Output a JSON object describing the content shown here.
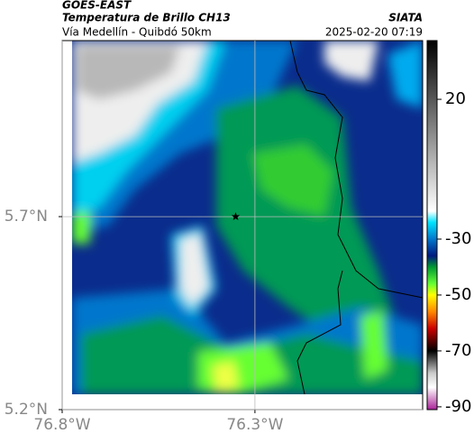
{
  "header": {
    "title": "GOES-EAST",
    "subtitle": "Temperatura de Brillo CH13",
    "source": "SIATA",
    "route": "Vía Medellín - Quibdó 50km",
    "timestamp": "2025-02-20 07:19"
  },
  "map": {
    "xlim": [
      -76.8,
      -75.865
    ],
    "ylim": [
      5.2,
      6.156
    ],
    "xticks": [
      {
        "value": -76.8,
        "label": "76.8°W"
      },
      {
        "value": -76.3,
        "label": "76.3°W"
      }
    ],
    "yticks": [
      {
        "value": 5.2,
        "label": "5.2°N"
      },
      {
        "value": 5.7,
        "label": "5.7°N"
      }
    ],
    "marker": {
      "lon": -76.35,
      "lat": 5.7
    }
  },
  "colorbar": {
    "clim": [
      -91,
      41
    ],
    "ticks": [
      20,
      -30,
      -50,
      -70,
      -90
    ],
    "stops": [
      {
        "value": 41,
        "color": "#000000"
      },
      {
        "value": -20,
        "color": "#ffffff"
      },
      {
        "value": -24,
        "color": "#00e5ff"
      },
      {
        "value": -30,
        "color": "#0077cc"
      },
      {
        "value": -36,
        "color": "#001a80"
      },
      {
        "value": -40,
        "color": "#009933"
      },
      {
        "value": -46,
        "color": "#66ff33"
      },
      {
        "value": -50,
        "color": "#ffff00"
      },
      {
        "value": -56,
        "color": "#ff8800"
      },
      {
        "value": -62,
        "color": "#cc0000"
      },
      {
        "value": -70,
        "color": "#000000"
      },
      {
        "value": -78,
        "color": "#cccccc"
      },
      {
        "value": -83,
        "color": "#ffffff"
      },
      {
        "value": -91,
        "color": "#aa2299"
      }
    ]
  }
}
